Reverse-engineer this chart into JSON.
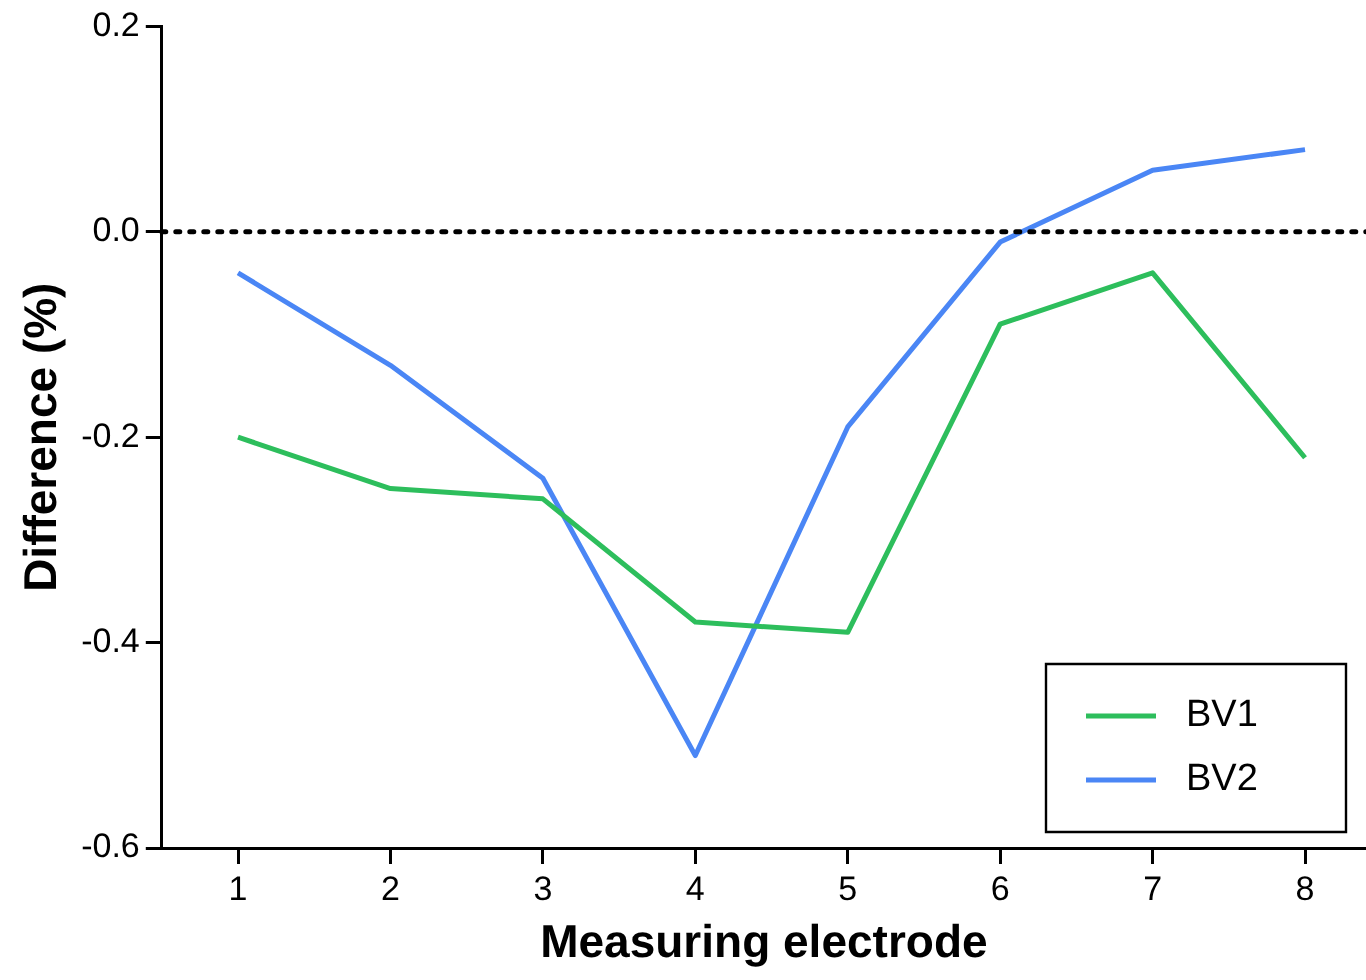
{
  "chart_data": {
    "type": "line",
    "xlabel": "Measuring electrode",
    "ylabel": "Difference (%)",
    "x": [
      1,
      2,
      3,
      4,
      5,
      6,
      7,
      8
    ],
    "series": [
      {
        "name": "BV1",
        "color": "#2dbe5c",
        "values": [
          -0.2,
          -0.25,
          -0.26,
          -0.38,
          -0.39,
          -0.09,
          -0.04,
          -0.22
        ]
      },
      {
        "name": "BV2",
        "color": "#4a86f5",
        "values": [
          -0.04,
          -0.13,
          -0.24,
          -0.51,
          -0.19,
          -0.01,
          0.06,
          0.08
        ]
      }
    ],
    "xlim": [
      0.5,
      8.4
    ],
    "xticks": [
      1,
      2,
      3,
      4,
      5,
      6,
      7,
      8
    ],
    "ylim": [
      -0.6,
      0.2
    ],
    "yticks": [
      -0.6,
      -0.4,
      -0.2,
      {
        "value": 0,
        "label": "0.0"
      },
      0.2
    ],
    "ref_lines": [
      {
        "axis": "y",
        "value": 0,
        "color": "#000000",
        "line_style": "dotted"
      }
    ],
    "grid": false,
    "legend": "bottom right",
    "marker": "none",
    "line_style": "solid"
  }
}
